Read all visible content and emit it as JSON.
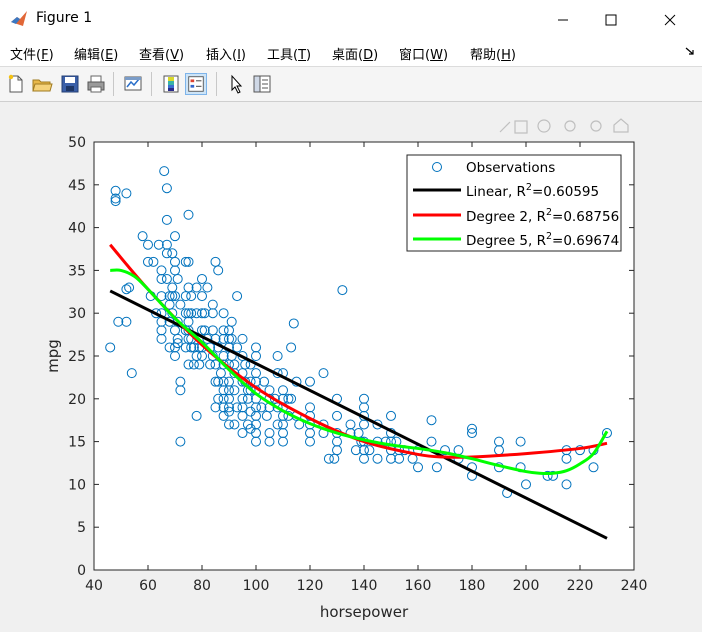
{
  "window": {
    "title": "Figure 1"
  },
  "menu": [
    {
      "label": "文件(",
      "key": "F",
      "end": ")"
    },
    {
      "label": "编辑(",
      "key": "E",
      "end": ")"
    },
    {
      "label": "查看(",
      "key": "V",
      "end": ")"
    },
    {
      "label": "插入(",
      "key": "I",
      "end": ")"
    },
    {
      "label": "工具(",
      "key": "T",
      "end": ")"
    },
    {
      "label": "桌面(",
      "key": "D",
      "end": ")"
    },
    {
      "label": "窗口(",
      "key": "W",
      "end": ")"
    },
    {
      "label": "帮助(",
      "key": "H",
      "end": ")"
    }
  ],
  "toolbar_icons": [
    "new-figure-icon",
    "open-file-icon",
    "save-icon",
    "print-icon",
    "link-plot-icon",
    "colorbar-icon",
    "legend-icon",
    "pointer-icon",
    "property-inspector-icon"
  ],
  "colors": {
    "observations": "#0072BD",
    "linear": "#000000",
    "deg2": "#FF0000",
    "deg5": "#00FF00"
  },
  "chart_data": {
    "type": "scatter",
    "xlabel": "horsepower",
    "ylabel": "mpg",
    "xlim": [
      40,
      240
    ],
    "ylim": [
      0,
      50
    ],
    "xticks": [
      40,
      60,
      80,
      100,
      120,
      140,
      160,
      180,
      200,
      220,
      240
    ],
    "yticks": [
      0,
      5,
      10,
      15,
      20,
      25,
      30,
      35,
      40,
      45,
      50
    ],
    "legend_location": "top-right",
    "observations": {
      "name": "Observations",
      "points": [
        [
          46,
          26
        ],
        [
          48,
          44.3
        ],
        [
          48,
          43.4
        ],
        [
          48,
          43.1
        ],
        [
          49,
          29
        ],
        [
          52,
          44
        ],
        [
          52,
          32.8
        ],
        [
          52,
          29
        ],
        [
          53,
          33
        ],
        [
          54,
          23
        ],
        [
          58,
          39
        ],
        [
          60,
          38
        ],
        [
          60,
          36
        ],
        [
          61,
          32
        ],
        [
          62,
          36
        ],
        [
          63,
          30
        ],
        [
          64,
          38
        ],
        [
          65,
          34
        ],
        [
          65,
          32
        ],
        [
          65,
          27
        ],
        [
          65,
          30
        ],
        [
          65,
          35
        ],
        [
          65,
          29
        ],
        [
          65,
          28
        ],
        [
          66,
          46.6
        ],
        [
          67,
          38
        ],
        [
          67,
          44.6
        ],
        [
          67,
          37
        ],
        [
          67,
          40.9
        ],
        [
          67,
          34
        ],
        [
          68,
          32
        ],
        [
          68,
          31
        ],
        [
          68,
          29
        ],
        [
          68,
          26
        ],
        [
          69,
          37
        ],
        [
          69,
          33
        ],
        [
          69,
          32
        ],
        [
          69,
          30
        ],
        [
          70,
          39
        ],
        [
          70,
          36
        ],
        [
          70,
          32
        ],
        [
          70,
          28
        ],
        [
          70,
          26
        ],
        [
          70,
          25
        ],
        [
          70,
          35
        ],
        [
          71,
          34
        ],
        [
          71,
          27
        ],
        [
          71,
          26.5
        ],
        [
          71,
          29
        ],
        [
          72,
          22
        ],
        [
          72,
          21
        ],
        [
          72,
          15
        ],
        [
          72,
          31
        ],
        [
          74,
          36
        ],
        [
          74,
          32
        ],
        [
          74,
          26
        ],
        [
          74,
          30
        ],
        [
          74,
          28
        ],
        [
          75,
          41.5
        ],
        [
          75,
          33
        ],
        [
          75,
          29
        ],
        [
          75,
          30
        ],
        [
          75,
          28
        ],
        [
          75,
          24
        ],
        [
          75,
          27
        ],
        [
          75,
          36
        ],
        [
          76,
          30
        ],
        [
          76,
          32
        ],
        [
          76,
          26
        ],
        [
          76,
          27
        ],
        [
          77,
          24
        ],
        [
          77,
          26
        ],
        [
          78,
          33
        ],
        [
          78,
          30
        ],
        [
          78,
          18
        ],
        [
          78,
          25
        ],
        [
          79,
          26
        ],
        [
          79,
          24
        ],
        [
          80,
          28
        ],
        [
          80,
          30
        ],
        [
          80,
          34
        ],
        [
          80,
          32
        ],
        [
          80,
          25
        ],
        [
          80,
          26
        ],
        [
          81,
          30
        ],
        [
          81,
          28
        ],
        [
          82,
          27
        ],
        [
          82,
          33
        ],
        [
          83,
          26
        ],
        [
          83,
          24
        ],
        [
          84,
          28
        ],
        [
          84,
          31
        ],
        [
          84,
          30
        ],
        [
          84,
          25
        ],
        [
          85,
          27
        ],
        [
          85,
          24
        ],
        [
          85,
          19
        ],
        [
          85,
          22
        ],
        [
          85,
          36
        ],
        [
          86,
          20
        ],
        [
          86,
          22
        ],
        [
          86,
          26
        ],
        [
          86,
          35
        ],
        [
          87,
          23
        ],
        [
          88,
          24
        ],
        [
          88,
          30
        ],
        [
          88,
          25
        ],
        [
          88,
          22
        ],
        [
          88,
          21
        ],
        [
          88,
          20
        ],
        [
          88,
          18
        ],
        [
          88,
          19
        ],
        [
          88,
          27
        ],
        [
          88,
          28
        ],
        [
          90,
          27
        ],
        [
          90,
          26
        ],
        [
          90,
          24
        ],
        [
          90,
          20
        ],
        [
          90,
          28
        ],
        [
          90,
          19
        ],
        [
          90,
          17
        ],
        [
          90,
          22
        ],
        [
          90,
          18.5
        ],
        [
          90,
          21
        ],
        [
          91,
          27
        ],
        [
          91,
          29
        ],
        [
          91,
          25
        ],
        [
          92,
          24
        ],
        [
          92,
          23
        ],
        [
          92,
          17
        ],
        [
          92,
          21
        ],
        [
          93,
          26
        ],
        [
          93,
          32
        ],
        [
          93,
          19
        ],
        [
          95,
          27
        ],
        [
          95,
          25
        ],
        [
          95,
          23
        ],
        [
          95,
          22
        ],
        [
          95,
          20
        ],
        [
          95,
          18
        ],
        [
          95,
          19
        ],
        [
          95,
          16
        ],
        [
          96,
          24
        ],
        [
          96,
          22
        ],
        [
          97,
          20
        ],
        [
          97,
          21
        ],
        [
          97,
          17
        ],
        [
          98,
          24
        ],
        [
          98,
          21
        ],
        [
          98,
          16.5
        ],
        [
          98,
          22
        ],
        [
          98,
          18.5
        ],
        [
          100,
          25
        ],
        [
          100,
          22
        ],
        [
          100,
          20
        ],
        [
          100,
          19
        ],
        [
          100,
          18
        ],
        [
          100,
          17
        ],
        [
          100,
          16
        ],
        [
          100,
          15
        ],
        [
          100,
          21
        ],
        [
          100,
          26
        ],
        [
          100,
          23
        ],
        [
          102,
          19
        ],
        [
          103,
          22
        ],
        [
          104,
          18
        ],
        [
          105,
          20
        ],
        [
          105,
          21
        ],
        [
          105,
          19
        ],
        [
          105,
          16
        ],
        [
          105,
          15
        ],
        [
          107,
          20
        ],
        [
          108,
          25
        ],
        [
          108,
          19
        ],
        [
          108,
          17
        ],
        [
          108,
          23
        ],
        [
          110,
          23
        ],
        [
          110,
          20
        ],
        [
          110,
          19
        ],
        [
          110,
          18
        ],
        [
          110,
          17
        ],
        [
          110,
          16
        ],
        [
          110,
          21
        ],
        [
          110,
          15
        ],
        [
          112,
          18
        ],
        [
          112,
          20
        ],
        [
          113,
          20
        ],
        [
          113,
          26
        ],
        [
          114,
          28.8
        ],
        [
          115,
          22
        ],
        [
          115,
          18
        ],
        [
          116,
          17
        ],
        [
          120,
          22
        ],
        [
          120,
          19
        ],
        [
          120,
          18
        ],
        [
          120,
          17
        ],
        [
          120,
          16
        ],
        [
          120,
          15
        ],
        [
          125,
          23
        ],
        [
          125,
          17
        ],
        [
          125,
          16
        ],
        [
          127,
          13
        ],
        [
          129,
          13
        ],
        [
          130,
          20
        ],
        [
          130,
          18
        ],
        [
          130,
          16
        ],
        [
          130,
          15
        ],
        [
          130,
          14
        ],
        [
          132,
          32.7
        ],
        [
          135,
          17
        ],
        [
          135,
          16
        ],
        [
          137,
          14
        ],
        [
          138,
          16
        ],
        [
          139,
          15
        ],
        [
          140,
          19
        ],
        [
          140,
          20
        ],
        [
          140,
          18
        ],
        [
          140,
          17
        ],
        [
          140,
          15
        ],
        [
          140,
          14
        ],
        [
          140,
          13
        ],
        [
          142,
          14
        ],
        [
          145,
          17
        ],
        [
          145,
          15
        ],
        [
          145,
          13
        ],
        [
          148,
          15
        ],
        [
          150,
          18
        ],
        [
          150,
          16
        ],
        [
          150,
          15
        ],
        [
          150,
          14
        ],
        [
          150,
          13
        ],
        [
          152,
          15
        ],
        [
          153,
          14
        ],
        [
          153,
          13
        ],
        [
          155,
          14
        ],
        [
          158,
          13
        ],
        [
          160,
          14
        ],
        [
          160,
          12
        ],
        [
          165,
          17.5
        ],
        [
          165,
          15
        ],
        [
          167,
          12
        ],
        [
          170,
          14
        ],
        [
          175,
          14
        ],
        [
          175,
          13
        ],
        [
          180,
          12
        ],
        [
          180,
          11
        ],
        [
          180,
          16
        ],
        [
          180,
          16.5
        ],
        [
          190,
          15
        ],
        [
          190,
          14
        ],
        [
          190,
          12
        ],
        [
          193,
          9
        ],
        [
          198,
          12
        ],
        [
          198,
          15
        ],
        [
          200,
          10
        ],
        [
          208,
          11
        ],
        [
          210,
          11
        ],
        [
          215,
          14
        ],
        [
          215,
          13
        ],
        [
          215,
          10
        ],
        [
          220,
          14
        ],
        [
          225,
          14
        ],
        [
          225,
          12
        ],
        [
          230,
          16
        ]
      ]
    },
    "series": [
      {
        "name": "Linear",
        "r2": "0.60595",
        "x": [
          46,
          230
        ],
        "y": [
          32.6,
          3.7
        ]
      },
      {
        "name": "Degree 2",
        "r2": "0.68756",
        "x": [
          46,
          60,
          80,
          100,
          120,
          140,
          160,
          170,
          180,
          200,
          220,
          230
        ],
        "y": [
          38.0,
          32.8,
          26.3,
          21.3,
          17.7,
          15.0,
          13.5,
          13.2,
          13.2,
          13.6,
          14.2,
          14.8
        ]
      },
      {
        "name": "Degree 5",
        "r2": "0.69674",
        "x": [
          46,
          50,
          55,
          60,
          70,
          80,
          90,
          100,
          110,
          120,
          130,
          140,
          150,
          160,
          170,
          180,
          190,
          200,
          205,
          210,
          215,
          220,
          225,
          230
        ],
        "y": [
          35.0,
          35.0,
          34.3,
          32.8,
          29.4,
          26.6,
          23.4,
          20.6,
          18.6,
          17.1,
          16.0,
          15.2,
          14.6,
          14.2,
          13.7,
          13.0,
          12.2,
          11.5,
          11.3,
          11.3,
          11.6,
          12.4,
          13.6,
          16.2
        ]
      }
    ],
    "legend_labels": {
      "obs": "Observations",
      "linear": "Linear, R",
      "deg2": "Degree 2, R",
      "deg5": "Degree 5, R",
      "sup": "2"
    }
  }
}
